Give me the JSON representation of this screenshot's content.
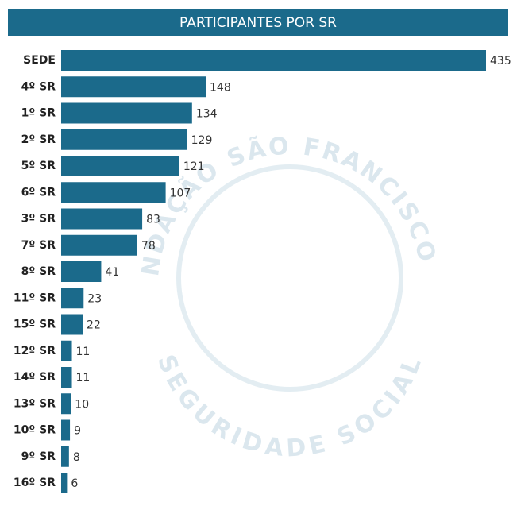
{
  "chart_data": {
    "type": "bar",
    "orientation": "horizontal",
    "title": "PARTICIPANTES POR SR",
    "categories": [
      "SEDE",
      "4º SR",
      "1º SR",
      "2º SR",
      "5º SR",
      "6º SR",
      "3º SR",
      "7º SR",
      "8º SR",
      "11º SR",
      "15º SR",
      "12º SR",
      "14º SR",
      "13º SR",
      "10º SR",
      "9º SR",
      "16º SR"
    ],
    "values": [
      435,
      148,
      134,
      129,
      121,
      107,
      83,
      78,
      41,
      23,
      22,
      11,
      11,
      10,
      9,
      8,
      6
    ],
    "color": "#1b6a8b",
    "watermark": {
      "top": "FUNDAÇÃO SÃO FRANCISCO DE",
      "bottom": "SEGURIDADE SOCIAL"
    }
  }
}
